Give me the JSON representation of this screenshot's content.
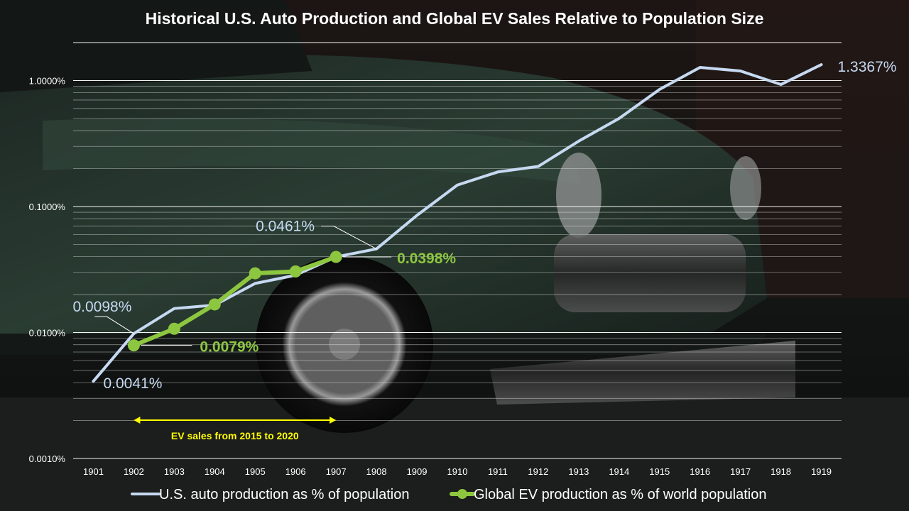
{
  "title": "Historical U.S. Auto Production and Global EV Sales Relative to Population Size",
  "colors": {
    "us_line": "#c6d9f1",
    "ev_line": "#8dc63f",
    "annotation": "#ffff00",
    "text": "#ffffff"
  },
  "annotation": {
    "text": "EV sales from 2015 to 2020"
  },
  "chart_data": {
    "type": "line",
    "title": "Historical U.S. Auto Production and Global EV Sales Relative to Population Size",
    "x": [
      "1901",
      "1902",
      "1903",
      "1904",
      "1905",
      "1906",
      "1907",
      "1908",
      "1909",
      "1910",
      "1911",
      "1912",
      "1913",
      "1914",
      "1915",
      "1916",
      "1917",
      "1918",
      "1919"
    ],
    "y_scale": "log",
    "ylim": [
      0.001,
      2
    ],
    "y_ticks": [
      0.001,
      0.01,
      0.1,
      1
    ],
    "y_tick_labels": [
      "0.0010%",
      "0.0100%",
      "0.1000%",
      "1.0000%"
    ],
    "grid": "horizontal",
    "legend_position": "bottom",
    "series": [
      {
        "name": "U.S. auto production as % of population",
        "values": [
          0.0041,
          0.0098,
          0.0155,
          0.0165,
          0.0245,
          0.0285,
          0.0398,
          0.0461,
          0.085,
          0.148,
          0.188,
          0.208,
          0.33,
          0.5,
          0.85,
          1.27,
          1.19,
          0.93,
          1.3367
        ],
        "labels": {
          "1901": "0.0041%",
          "1902": "0.0098%",
          "1908": "0.0461%",
          "1919": "1.3367%"
        }
      },
      {
        "name": "Global EV production as % of world population",
        "values": [
          null,
          0.0079,
          0.0107,
          0.0167,
          0.0295,
          0.0305,
          0.0398,
          null,
          null,
          null,
          null,
          null,
          null,
          null,
          null,
          null,
          null,
          null,
          null
        ],
        "labels": {
          "1902": "0.0079%",
          "1907": "0.0398%"
        }
      }
    ]
  }
}
